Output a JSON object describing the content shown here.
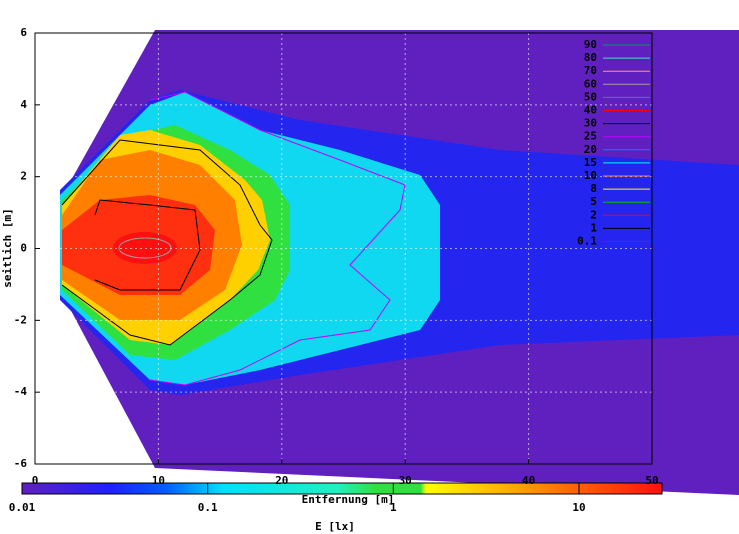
{
  "chart_data": {
    "type": "contour",
    "xlabel": "Entfernung [m]",
    "ylabel": "seitlich [m]",
    "xlim": [
      0,
      50
    ],
    "xticks": [
      0,
      10,
      20,
      30,
      40,
      50
    ],
    "ylim": [
      -6,
      6
    ],
    "yticks": [
      -6,
      -4,
      -2,
      0,
      2,
      4,
      6
    ],
    "grid": true,
    "legend": "top-right",
    "series": [
      {
        "name": "90",
        "color": "#00a050"
      },
      {
        "name": "80",
        "color": "#40e0c0"
      },
      {
        "name": "70",
        "color": "#ffa040"
      },
      {
        "name": "60",
        "color": "#a0a0a0"
      },
      {
        "name": "50",
        "color": "#707070"
      },
      {
        "name": "40",
        "color": "#ff0000"
      },
      {
        "name": "30",
        "color": "#000000"
      },
      {
        "name": "25",
        "color": "#c000ff"
      },
      {
        "name": "20",
        "color": "#0080ff"
      },
      {
        "name": "15",
        "color": "#00ffff"
      },
      {
        "name": "10",
        "color": "#ff8040"
      },
      {
        "name": "8",
        "color": "#ffff00"
      },
      {
        "name": "5",
        "color": "#00c000"
      },
      {
        "name": "2",
        "color": "#ff0000"
      },
      {
        "name": "1",
        "color": "#000000"
      },
      {
        "name": "0.1",
        "color": "#6020c0"
      }
    ],
    "colorbar": {
      "label": "E [lx]",
      "log": true,
      "lim": [
        0.01,
        28
      ],
      "ticks": [
        {
          "value": 0.01,
          "label": "0.01"
        },
        {
          "value": 0.1,
          "label": "0.1"
        },
        1,
        10
      ],
      "stops": [
        {
          "value": 0.01,
          "color": "#6020c0"
        },
        {
          "value": 0.03,
          "color": "#2020ff"
        },
        {
          "value": 0.06,
          "color": "#0060ff"
        },
        {
          "value": 0.12,
          "color": "#00e0ff"
        },
        {
          "value": 0.5,
          "color": "#20f0c0"
        },
        {
          "value": 0.8,
          "color": "#30e040"
        },
        {
          "value": 1.4,
          "color": "#30e040"
        },
        {
          "value": 1.5,
          "color": "#ffff00"
        },
        {
          "value": 4,
          "color": "#ffb000"
        },
        {
          "value": 10,
          "color": "#ff6000"
        },
        {
          "value": 28,
          "color": "#ff1010"
        }
      ]
    }
  }
}
